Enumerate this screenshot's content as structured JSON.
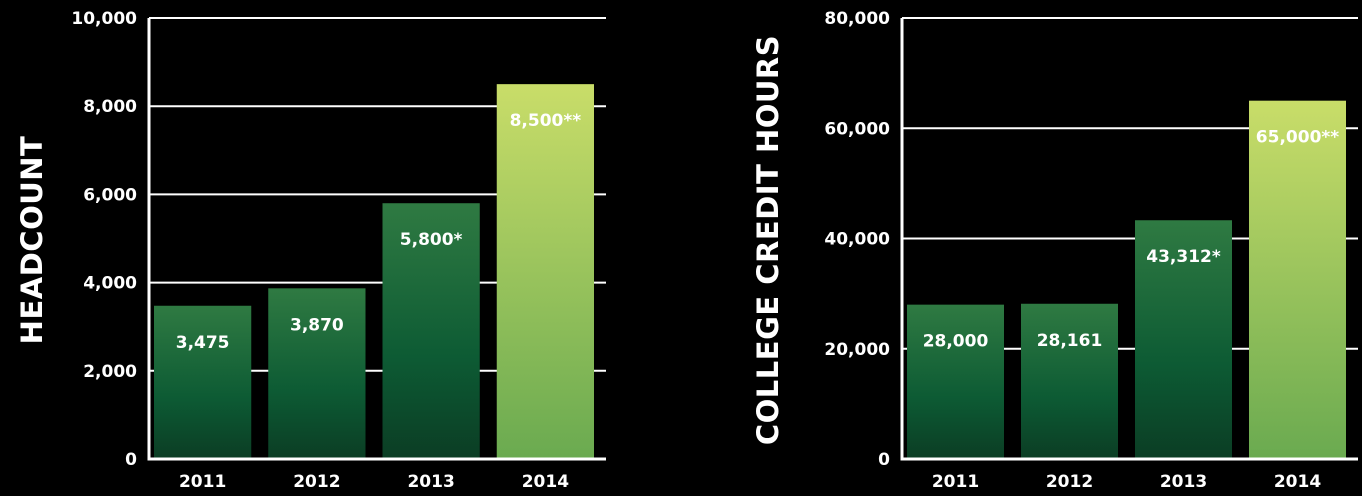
{
  "colors": {
    "background": "#000000",
    "axis": "#ffffff",
    "bar_dark_top": "#2f7a42",
    "bar_dark_mid": "#0d5b34",
    "bar_dark_bottom": "#0b3d24",
    "bar_light_top": "#c9dd69",
    "bar_light_bottom": "#6aaa50"
  },
  "chart_data": [
    {
      "type": "bar",
      "ylabel": "HEADCOUNT",
      "ylim": [
        0,
        10000
      ],
      "yticks": [
        0,
        2000,
        4000,
        6000,
        8000,
        10000
      ],
      "ytick_labels": [
        "0",
        "2,000",
        "4,000",
        "6,000",
        "8,000",
        "10,000"
      ],
      "grid": true,
      "categories": [
        "2011",
        "2012",
        "2013",
        "2014"
      ],
      "values": [
        3475,
        3870,
        5800,
        8500
      ],
      "data_labels": [
        "3,475",
        "3,870",
        "5,800*",
        "8,500**"
      ]
    },
    {
      "type": "bar",
      "ylabel": "COLLEGE CREDIT HOURS",
      "ylim": [
        0,
        80000
      ],
      "yticks": [
        0,
        20000,
        40000,
        60000,
        80000
      ],
      "ytick_labels": [
        "0",
        "20,000",
        "40,000",
        "60,000",
        "80,000"
      ],
      "grid": true,
      "categories": [
        "2011",
        "2012",
        "2013",
        "2014"
      ],
      "values": [
        28000,
        28161,
        43312,
        65000
      ],
      "data_labels": [
        "28,000",
        "28,161",
        "43,312*",
        "65,000**"
      ]
    }
  ]
}
